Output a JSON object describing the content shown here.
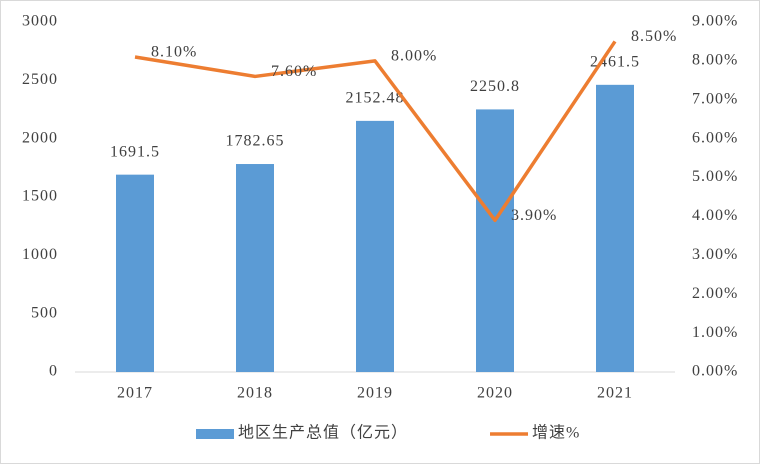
{
  "chart_data": {
    "type": "bar",
    "categories": [
      "2017",
      "2018",
      "2019",
      "2020",
      "2021"
    ],
    "series": [
      {
        "name": "地区生产总值（亿元）",
        "type": "bar",
        "color": "#5b9bd5",
        "values": [
          1691.5,
          1782.65,
          2152.48,
          2250.8,
          2461.5
        ]
      },
      {
        "name": "增速%",
        "type": "line",
        "axis": "y2",
        "color": "#ed7d31",
        "values": [
          8.1,
          7.6,
          8.0,
          3.9,
          8.5
        ],
        "value_labels": [
          "8.10%",
          "7.60%",
          "8.00%",
          "3.90%",
          "8.50%"
        ]
      }
    ],
    "ylim": [
      0,
      3000
    ],
    "yticks": [
      0,
      500,
      1000,
      1500,
      2000,
      2500,
      3000
    ],
    "y2lim": [
      0,
      9
    ],
    "y2ticks": [
      {
        "value": 0,
        "label": "0.00%"
      },
      {
        "value": 1,
        "label": "1.00%"
      },
      {
        "value": 2,
        "label": "2.00%"
      },
      {
        "value": 3,
        "label": "3.00%"
      },
      {
        "value": 4,
        "label": "4.00%"
      },
      {
        "value": 5,
        "label": "5.00%"
      },
      {
        "value": 6,
        "label": "6.00%"
      },
      {
        "value": 7,
        "label": "7.00%"
      },
      {
        "value": 8,
        "label": "8.00%"
      },
      {
        "value": 9,
        "label": "9.00%"
      }
    ],
    "legend": "bottom"
  }
}
